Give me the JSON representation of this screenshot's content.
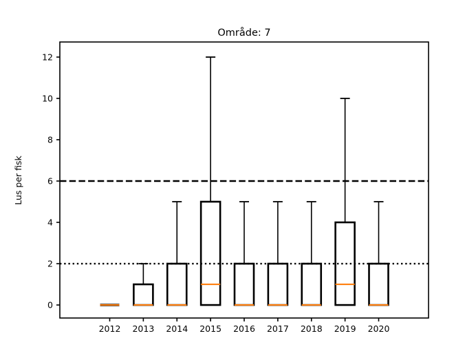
{
  "chart_data": {
    "type": "boxplot",
    "title": "Område: 7",
    "xlabel": "",
    "ylabel": "Lus per fisk",
    "categories": [
      "2012",
      "2013",
      "2014",
      "2015",
      "2016",
      "2017",
      "2018",
      "2019",
      "2020"
    ],
    "series": [
      {
        "label": "2012",
        "whislo": 0,
        "q1": 0,
        "med": 0,
        "q3": 0,
        "whishi": 0
      },
      {
        "label": "2013",
        "whislo": 0,
        "q1": 0,
        "med": 0,
        "q3": 1,
        "whishi": 2
      },
      {
        "label": "2014",
        "whislo": 0,
        "q1": 0,
        "med": 0,
        "q3": 2,
        "whishi": 5
      },
      {
        "label": "2015",
        "whislo": 0,
        "q1": 0,
        "med": 1,
        "q3": 5,
        "whishi": 12
      },
      {
        "label": "2016",
        "whislo": 0,
        "q1": 0,
        "med": 0,
        "q3": 2,
        "whishi": 5
      },
      {
        "label": "2017",
        "whislo": 0,
        "q1": 0,
        "med": 0,
        "q3": 2,
        "whishi": 5
      },
      {
        "label": "2018",
        "whislo": 0,
        "q1": 0,
        "med": 0,
        "q3": 2,
        "whishi": 5
      },
      {
        "label": "2019",
        "whislo": 0,
        "q1": 0,
        "med": 1,
        "q3": 4,
        "whishi": 10
      },
      {
        "label": "2020",
        "whislo": 0,
        "q1": 0,
        "med": 0,
        "q3": 2,
        "whishi": 5
      }
    ],
    "yticks": [
      0,
      2,
      4,
      6,
      8,
      10,
      12
    ],
    "ylim": [
      -0.63,
      12.73
    ],
    "reference_lines": [
      {
        "y": 6,
        "style": "dashed",
        "color": "#000000"
      },
      {
        "y": 2,
        "style": "dotted",
        "color": "#000000"
      }
    ],
    "colors": {
      "box": "#000000",
      "median": "#ff7f0e",
      "whisker": "#000000",
      "axis": "#000000",
      "background": "#ffffff"
    },
    "grid": false,
    "legend_position": "none"
  }
}
